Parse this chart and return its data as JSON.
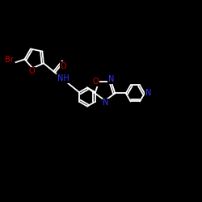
{
  "bg_color": "#000000",
  "bond_color": "#ffffff",
  "atom_colors": {
    "Br": "#cc0000",
    "O": "#cc0000",
    "N": "#3333ff",
    "C": "#ffffff"
  },
  "figsize": [
    2.5,
    2.5
  ],
  "dpi": 100,
  "bond_lw": 1.3,
  "font_size": 7.0
}
